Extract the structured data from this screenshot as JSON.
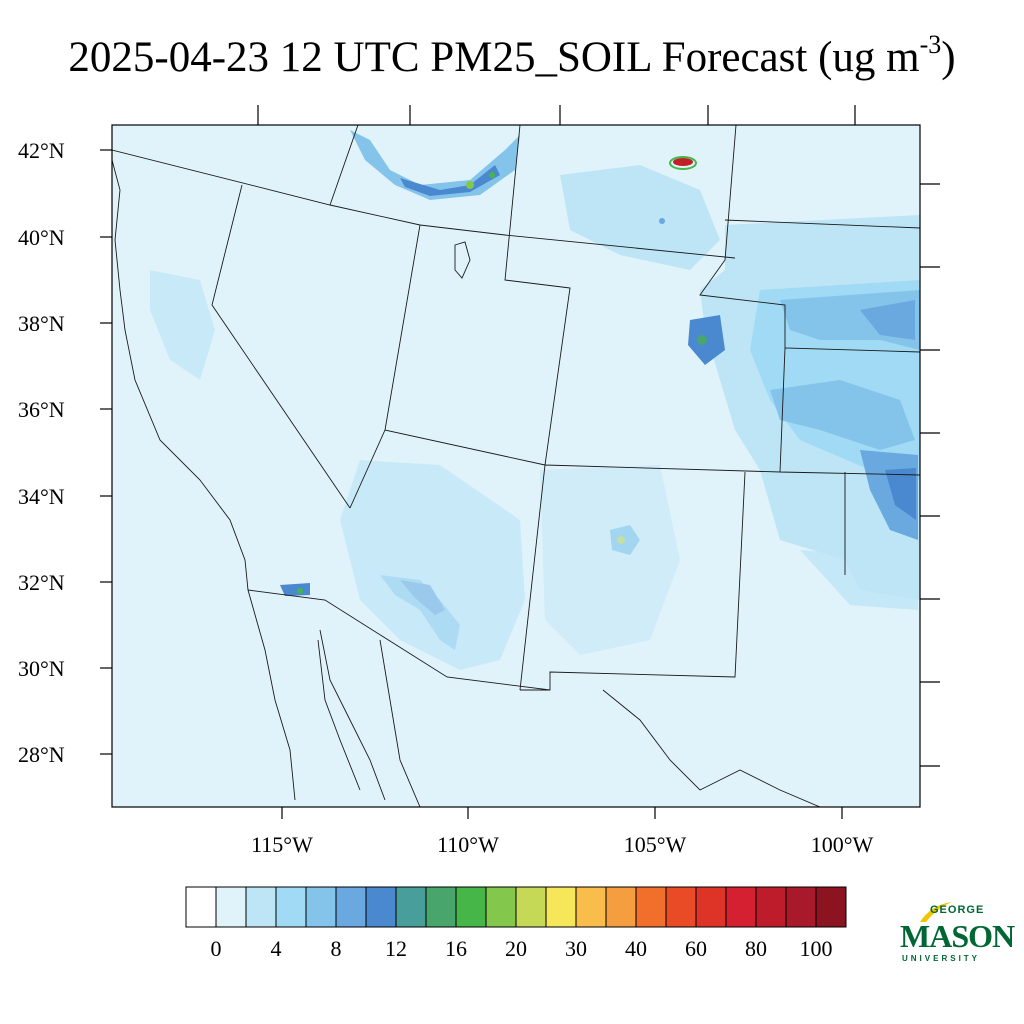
{
  "title": {
    "main": "2025-04-23 12 UTC PM25_SOIL Forecast (ug m",
    "superscript": "-3",
    "closing": ")"
  },
  "map": {
    "latitude_labels": [
      "42°N",
      "40°N",
      "38°N",
      "36°N",
      "34°N",
      "32°N",
      "30°N",
      "28°N"
    ],
    "longitude_labels": [
      "115°W",
      "110°W",
      "105°W",
      "100°W"
    ],
    "background_color": "#e0f3fb",
    "hotspot_colors": {
      "light_blue": "#bde5f6",
      "mid_blue": "#9ad6f2",
      "blue": "#72b7e3",
      "dark_blue": "#4d8fd0",
      "green": "#4aa86a",
      "yellow": "#f6e65a",
      "red": "#c21f26"
    }
  },
  "colorbar": {
    "colors": [
      "#ffffff",
      "#e0f3fb",
      "#bde5f6",
      "#a0daf5",
      "#84c4ea",
      "#6aa8e0",
      "#4a88cf",
      "#489e9b",
      "#48a66c",
      "#47b649",
      "#83c84c",
      "#c6d957",
      "#f6e65a",
      "#f8bd4b",
      "#f59e3f",
      "#f16f2a",
      "#e84b26",
      "#de3427",
      "#d42030",
      "#bf1c2b",
      "#a8192b",
      "#8c1421"
    ],
    "labels": [
      "0",
      "4",
      "8",
      "12",
      "16",
      "20",
      "30",
      "40",
      "60",
      "80",
      "100"
    ]
  },
  "logo": {
    "line1": "GEORGE",
    "line2": "MASON",
    "line3": "UNIVERSITY",
    "color": "#006633",
    "accent": "#f2c500"
  }
}
